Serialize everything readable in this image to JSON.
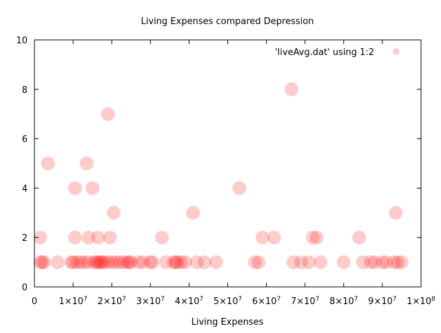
{
  "chart_data": {
    "type": "scatter",
    "title": "Living Expenses compared Depression",
    "xlabel": "Living Expenses",
    "ylabel": "",
    "xlim": [
      0,
      100000000
    ],
    "ylim": [
      0,
      10
    ],
    "grid": false,
    "legend_position": "top-right",
    "x_ticks": [
      {
        "value": 0,
        "label": "0"
      },
      {
        "value": 10000000,
        "label": "1×10",
        "exp": "7"
      },
      {
        "value": 20000000,
        "label": "2×10",
        "exp": "7"
      },
      {
        "value": 30000000,
        "label": "3×10",
        "exp": "7"
      },
      {
        "value": 40000000,
        "label": "4×10",
        "exp": "7"
      },
      {
        "value": 50000000,
        "label": "5×10",
        "exp": "7"
      },
      {
        "value": 60000000,
        "label": "6×10",
        "exp": "7"
      },
      {
        "value": 70000000,
        "label": "7×10",
        "exp": "7"
      },
      {
        "value": 80000000,
        "label": "8×10",
        "exp": "7"
      },
      {
        "value": 90000000,
        "label": "9×10",
        "exp": "7"
      },
      {
        "value": 100000000,
        "label": "1×10",
        "exp": "8"
      }
    ],
    "y_ticks": [
      {
        "value": 0,
        "label": "0"
      },
      {
        "value": 2,
        "label": "2"
      },
      {
        "value": 4,
        "label": "4"
      },
      {
        "value": 6,
        "label": "6"
      },
      {
        "value": 8,
        "label": "8"
      },
      {
        "value": 10,
        "label": "10"
      }
    ],
    "marker_color": "#ff0000",
    "series": [
      {
        "name": "'liveAvg.dat' using 1:2",
        "points": [
          [
            1500000,
            1
          ],
          [
            2000000,
            1
          ],
          [
            2500000,
            1
          ],
          [
            1500000,
            2
          ],
          [
            3500000,
            5
          ],
          [
            6000000,
            1
          ],
          [
            9500000,
            1
          ],
          [
            10000000,
            1
          ],
          [
            11000000,
            1
          ],
          [
            10500000,
            2
          ],
          [
            10500000,
            4
          ],
          [
            12000000,
            1
          ],
          [
            13000000,
            1
          ],
          [
            14000000,
            1
          ],
          [
            13500000,
            5
          ],
          [
            14000000,
            2
          ],
          [
            15000000,
            4
          ],
          [
            15500000,
            1
          ],
          [
            16000000,
            1
          ],
          [
            16500000,
            1
          ],
          [
            16500000,
            2
          ],
          [
            17000000,
            1
          ],
          [
            17500000,
            1
          ],
          [
            18000000,
            1
          ],
          [
            19000000,
            7
          ],
          [
            19000000,
            1
          ],
          [
            19500000,
            2
          ],
          [
            20000000,
            1
          ],
          [
            20500000,
            3
          ],
          [
            21000000,
            1
          ],
          [
            22000000,
            1
          ],
          [
            23000000,
            1
          ],
          [
            24000000,
            1
          ],
          [
            24500000,
            1
          ],
          [
            25000000,
            1
          ],
          [
            27000000,
            1
          ],
          [
            28000000,
            1
          ],
          [
            30000000,
            1
          ],
          [
            30500000,
            1
          ],
          [
            33000000,
            2
          ],
          [
            34000000,
            1
          ],
          [
            36000000,
            1
          ],
          [
            36500000,
            1
          ],
          [
            37000000,
            1
          ],
          [
            38000000,
            1
          ],
          [
            39000000,
            1
          ],
          [
            41000000,
            3
          ],
          [
            42000000,
            1
          ],
          [
            44000000,
            1
          ],
          [
            47000000,
            1
          ],
          [
            53000000,
            4
          ],
          [
            57000000,
            1
          ],
          [
            58000000,
            1
          ],
          [
            59000000,
            2
          ],
          [
            62000000,
            2
          ],
          [
            66500000,
            8
          ],
          [
            67000000,
            1
          ],
          [
            69000000,
            1
          ],
          [
            71000000,
            1
          ],
          [
            72000000,
            2
          ],
          [
            73000000,
            2
          ],
          [
            74000000,
            1
          ],
          [
            80000000,
            1
          ],
          [
            84000000,
            2
          ],
          [
            85000000,
            1
          ],
          [
            87000000,
            1
          ],
          [
            88000000,
            1
          ],
          [
            90000000,
            1
          ],
          [
            91000000,
            1
          ],
          [
            93000000,
            1
          ],
          [
            94000000,
            1
          ],
          [
            93500000,
            3
          ],
          [
            95000000,
            1
          ]
        ]
      }
    ]
  }
}
